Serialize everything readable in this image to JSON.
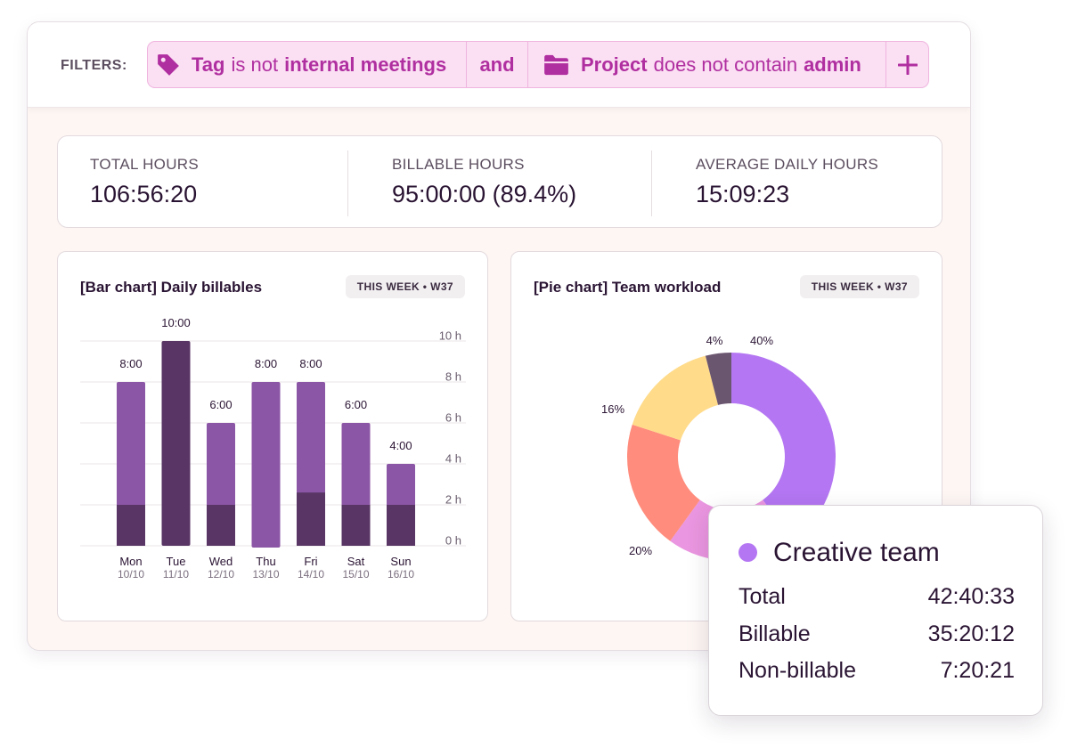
{
  "filters": {
    "label": "FILTERS:",
    "tag_chip": {
      "field": "Tag",
      "operator": "is not",
      "value": "internal meetings",
      "icon": "tag-icon"
    },
    "conjunction": "and",
    "project_chip": {
      "field": "Project",
      "operator": "does not contain",
      "value": "admin",
      "icon": "folder-icon"
    },
    "add_icon": "plus-icon"
  },
  "stats": [
    {
      "label": "TOTAL HOURS",
      "value": "106:56:20"
    },
    {
      "label": "BILLABLE HOURS",
      "value": "95:00:00 (89.4%)"
    },
    {
      "label": "AVERAGE DAILY HOURS",
      "value": "15:09:23"
    }
  ],
  "bar_panel": {
    "title": "[Bar chart] Daily billables",
    "badge": "THIS WEEK • W37"
  },
  "pie_panel": {
    "title": "[Pie chart] Team workload",
    "badge": "THIS WEEK • W37"
  },
  "colors": {
    "billable": "#8c56a6",
    "non_billable": "#583564",
    "pie": [
      "#b476f2",
      "#ea96e0",
      "#ff8c7c",
      "#ffdb8a",
      "#6b5670"
    ]
  },
  "chart_data": [
    {
      "type": "bar",
      "stacked": true,
      "categories": [
        "Mon",
        "Tue",
        "Wed",
        "Thu",
        "Fri",
        "Sat",
        "Sun"
      ],
      "sublabels": [
        "10/10",
        "11/10",
        "12/10",
        "13/10",
        "14/10",
        "15/10",
        "16/10"
      ],
      "totals": [
        "8:00",
        "10:00",
        "6:00",
        "8:00",
        "8:00",
        "6:00",
        "4:00"
      ],
      "series": [
        {
          "values": [
            2,
            10,
            2,
            0,
            2.6,
            2,
            2
          ]
        },
        {
          "values": [
            6,
            0,
            4,
            8,
            5.4,
            4,
            2
          ]
        }
      ],
      "yticks": [
        "10 h",
        "8 h",
        "6 h",
        "4 h",
        "2 h",
        "0 h"
      ],
      "ylim": [
        0,
        10
      ],
      "grid": true
    },
    {
      "type": "pie",
      "donut": true,
      "slices": [
        40,
        20,
        20,
        16,
        4
      ],
      "labels": [
        "40%",
        "",
        "20%",
        "16%",
        "4%"
      ]
    }
  ],
  "tooltip": {
    "title": "Creative team",
    "rows": [
      {
        "label": "Total",
        "value": "42:40:33"
      },
      {
        "label": "Billable",
        "value": "35:20:12"
      },
      {
        "label": "Non-billable",
        "value": "7:20:21"
      }
    ]
  }
}
